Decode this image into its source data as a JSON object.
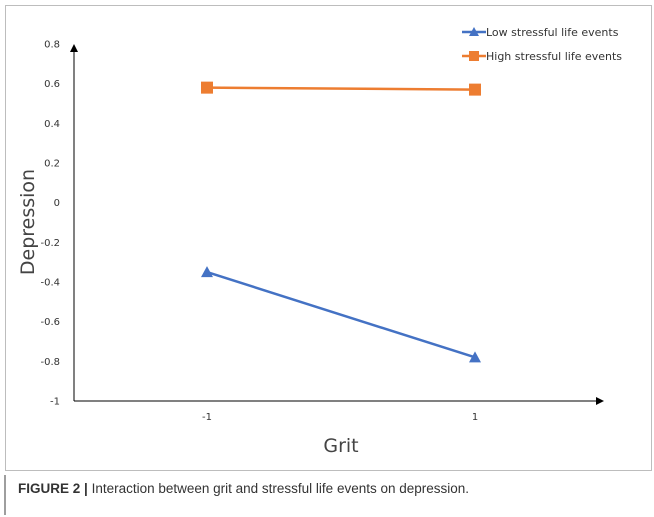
{
  "chart_data": {
    "type": "line",
    "title": "",
    "xlabel": "Grit",
    "ylabel": "Depression",
    "categories": [
      "-1",
      "1"
    ],
    "y_ticks": [
      "0.8",
      "0.6",
      "0.4",
      "0.2",
      "0",
      "-0.2",
      "-0.4",
      "-0.6",
      "-0.8",
      "-1"
    ],
    "ylim": [
      -1,
      0.8
    ],
    "grid": false,
    "legend_position": "top-right",
    "series": [
      {
        "name": "Low stressful life events",
        "values": [
          -0.35,
          -0.78
        ],
        "color": "#4472c4",
        "marker": "triangle"
      },
      {
        "name": "High stressful life events",
        "values": [
          0.58,
          0.57
        ],
        "color": "#ed7d31",
        "marker": "square"
      }
    ]
  },
  "caption": {
    "label": "FIGURE 2 |",
    "text": "Interaction between grit and stressful life events on depression."
  }
}
